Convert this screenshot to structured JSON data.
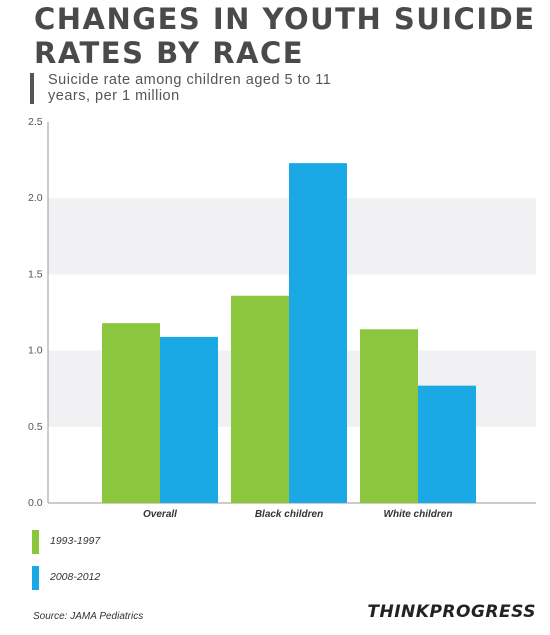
{
  "chart_data": {
    "type": "bar",
    "title": "CHANGES IN YOUTH SUICIDE RATES BY RACE",
    "subtitle": "Suicide rate among children aged 5 to 11 years, per 1 million",
    "categories": [
      "Overall",
      "Black children",
      "White children"
    ],
    "series": [
      {
        "name": "1993-1997",
        "values": [
          1.18,
          1.36,
          1.14
        ]
      },
      {
        "name": "2008-2012",
        "values": [
          1.09,
          2.23,
          0.77
        ]
      }
    ],
    "ylim": [
      0,
      2.5
    ],
    "yticks": [
      "0.0",
      "0.5",
      "1.0",
      "1.5",
      "2.0",
      "2.5"
    ],
    "xlabel": "",
    "ylabel": "",
    "legend_position": "bottom-left",
    "colors": {
      "series_1": "#8cc63f",
      "series_2": "#1ba9e6",
      "band": "#f1f1f3"
    }
  },
  "source": "Source: JAMA Pediatrics",
  "brand": "THINKPROGRESS"
}
